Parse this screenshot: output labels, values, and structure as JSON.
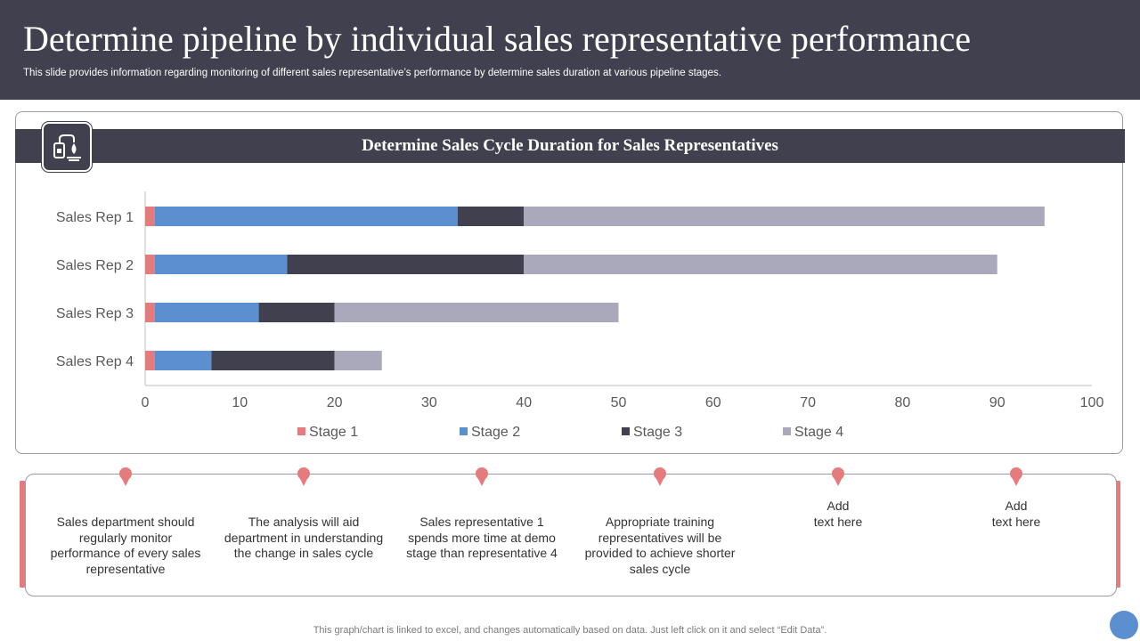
{
  "header": {
    "title": "Determine pipeline by individual sales representative performance",
    "subtitle": "This slide provides information regarding monitoring of different sales representative’s performance by determine sales duration at various pipeline stages."
  },
  "icon": "sales-pipeline-icon",
  "chart_data": {
    "type": "bar",
    "orientation": "horizontal",
    "stacked": true,
    "title": "Determine Sales Cycle Duration for Sales Representatives",
    "categories": [
      "Sales Rep 1",
      "Sales Rep 2",
      "Sales Rep 3",
      "Sales Rep 4"
    ],
    "series": [
      {
        "name": "Stage 1",
        "color": "#e67b7e",
        "values": [
          1,
          1,
          1,
          1
        ]
      },
      {
        "name": "Stage 2",
        "color": "#5b8fd0",
        "values": [
          32,
          14,
          11,
          6
        ]
      },
      {
        "name": "Stage 3",
        "color": "#40404f",
        "values": [
          7,
          25,
          8,
          13
        ]
      },
      {
        "name": "Stage 4",
        "color": "#a9a9bb",
        "values": [
          55,
          50,
          30,
          5
        ]
      }
    ],
    "xlim": [
      0,
      100
    ],
    "xticks": [
      "0",
      "10",
      "20",
      "30",
      "40",
      "50",
      "60",
      "70",
      "80",
      "90",
      "100"
    ],
    "grid": false,
    "legend_position": "bottom"
  },
  "notes": [
    "Sales department should regularly monitor performance of every sales representative",
    "The analysis will aid department in understanding the change in sales cycle",
    "Sales representative 1 spends more time at demo stage than representative 4",
    "Appropriate training representatives will be provided to achieve shorter sales cycle",
    "Add\ntext here",
    "Add\ntext here"
  ],
  "colors": {
    "dark": "#40404f",
    "accent": "#e67b7e",
    "blue": "#5b8fd0",
    "gray": "#a9a9bb"
  },
  "footer": "This graph/chart is linked to excel,  and changes automatically based on data. Just left click on it and select “Edit Data”."
}
